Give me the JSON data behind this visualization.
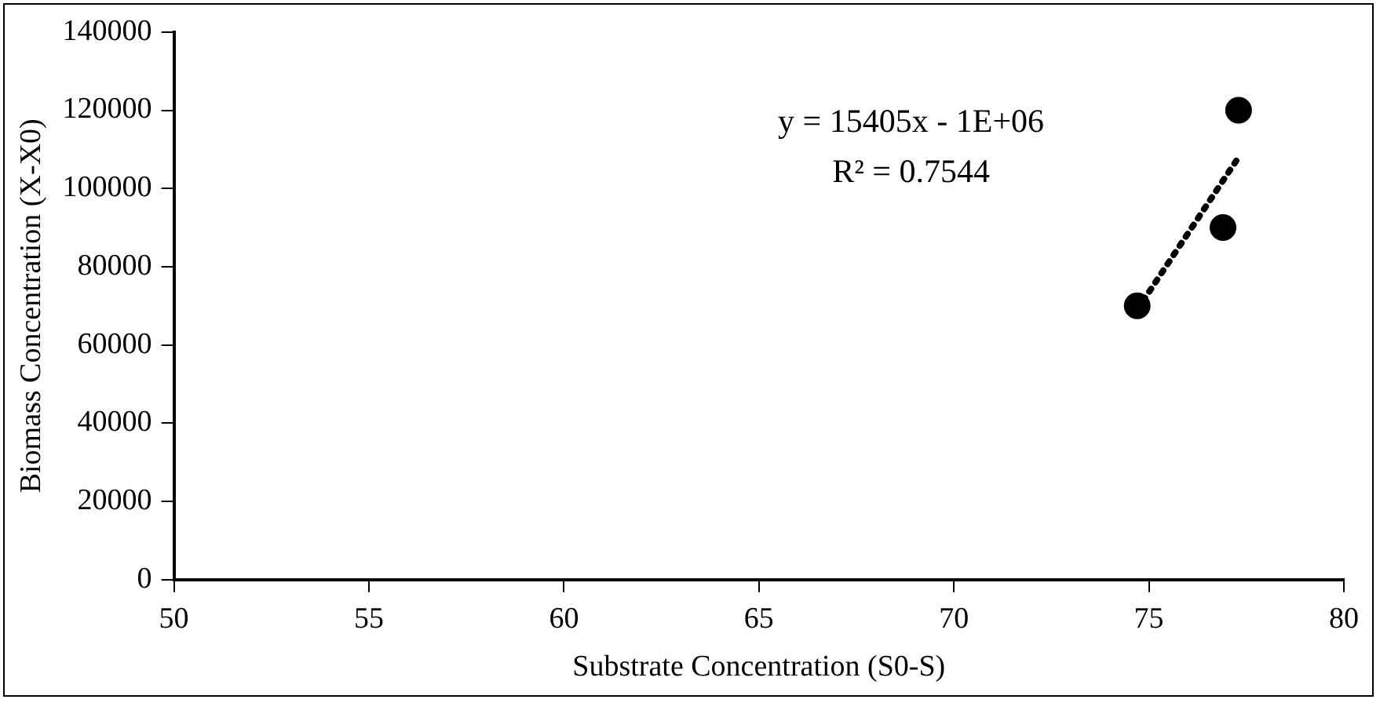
{
  "chart_data": {
    "type": "scatter",
    "xlabel": "Substrate Concentration (S0-S)",
    "ylabel": "Biomass Concentration (X-X0)",
    "xlim": [
      50,
      80
    ],
    "xticks": [
      50,
      55,
      60,
      65,
      70,
      75,
      80
    ],
    "ylim": [
      0,
      140000
    ],
    "yticks": [
      0,
      20000,
      40000,
      60000,
      80000,
      100000,
      120000,
      140000
    ],
    "grid": false,
    "legend": false,
    "marker": "circle",
    "series": [
      {
        "color": "#000000",
        "x": [
          74.7,
          76.9,
          77.3
        ],
        "values": [
          70000,
          90000,
          120000
        ]
      },
      {
        "type": "line",
        "color": "#000000",
        "x": [
          74.7,
          77.3
        ],
        "values": [
          69000,
          108000
        ],
        "line_style": "dotted",
        "marker": "none"
      }
    ],
    "annotations": [
      "y = 15405x - 1E+06",
      "R² = 0.7544"
    ]
  }
}
